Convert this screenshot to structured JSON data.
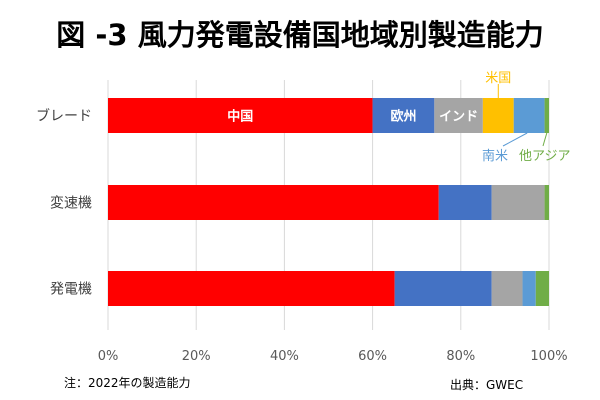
{
  "chart_data": {
    "type": "bar",
    "orientation": "horizontal",
    "stacked": true,
    "title": "図 -3 風力発電設備国地域別製造能力",
    "categories": [
      "ブレード",
      "変速機",
      "発電機"
    ],
    "series": [
      {
        "name": "中国",
        "color": "#ff0000",
        "values": [
          60,
          75,
          65
        ]
      },
      {
        "name": "欧州",
        "color": "#4472c4",
        "values": [
          14,
          12,
          22
        ]
      },
      {
        "name": "インド",
        "color": "#a5a5a5",
        "values": [
          11,
          12,
          7
        ]
      },
      {
        "name": "米国",
        "color": "#ffc000",
        "values": [
          7,
          0,
          0
        ]
      },
      {
        "name": "南米",
        "color": "#5b9bd5",
        "values": [
          7,
          0,
          3
        ]
      },
      {
        "name": "他アジア",
        "color": "#70ad47",
        "values": [
          1,
          1,
          3
        ]
      }
    ],
    "xlim": [
      0,
      100
    ],
    "xticks": [
      "0%",
      "20%",
      "40%",
      "60%",
      "80%",
      "100%"
    ],
    "grid": true,
    "note": "注：2022年の製造能力",
    "source": "出典：GWEC"
  }
}
